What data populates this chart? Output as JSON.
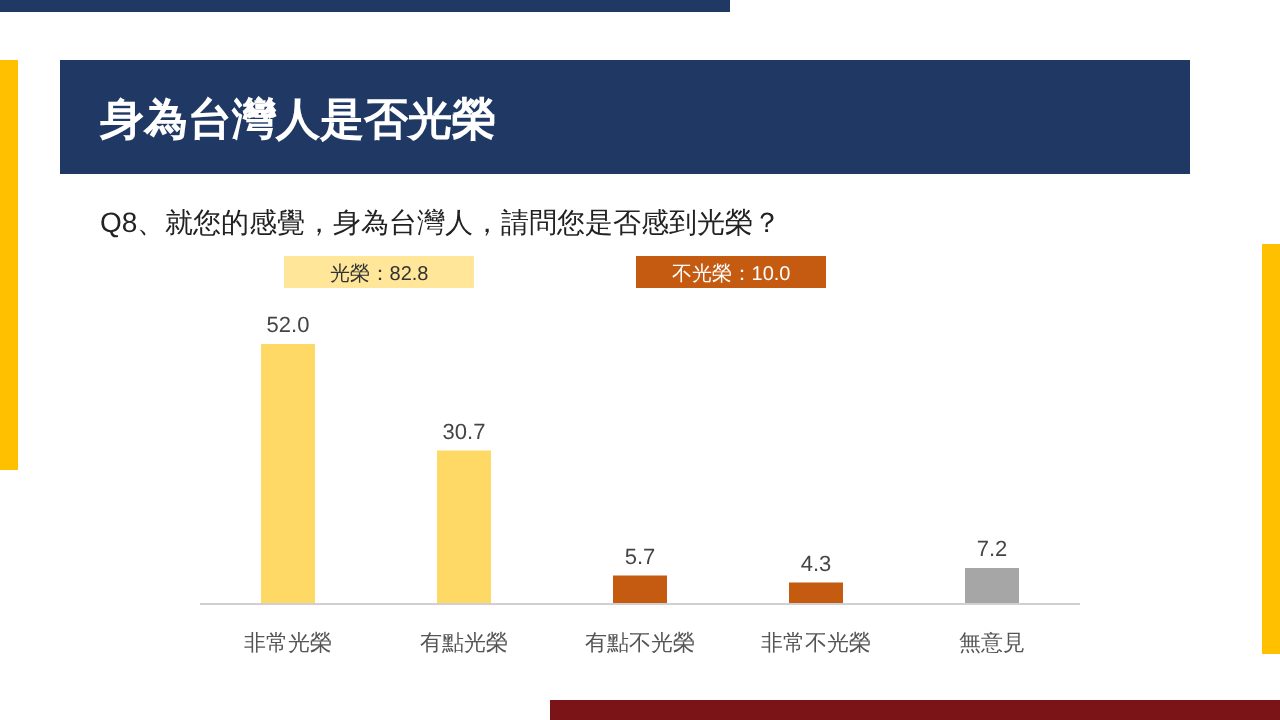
{
  "chart_data": {
    "type": "bar",
    "title": "身為台灣人是否光榮",
    "subtitle": "Q8、就您的感覺，身為台灣人，請問您是否感到光榮？",
    "annotations": [
      "光榮：82.8",
      "不光榮：10.0"
    ],
    "categories": [
      "非常光榮",
      "有點光榮",
      "有點不光榮",
      "非常不光榮",
      "無意見"
    ],
    "values": [
      52.0,
      30.7,
      5.7,
      4.3,
      7.2
    ],
    "colors": [
      "#ffd966",
      "#ffd966",
      "#c55a11",
      "#c55a11",
      "#a6a6a6"
    ],
    "value_labels": [
      "52.0",
      "30.7",
      "5.7",
      "4.3",
      "7.2"
    ]
  }
}
